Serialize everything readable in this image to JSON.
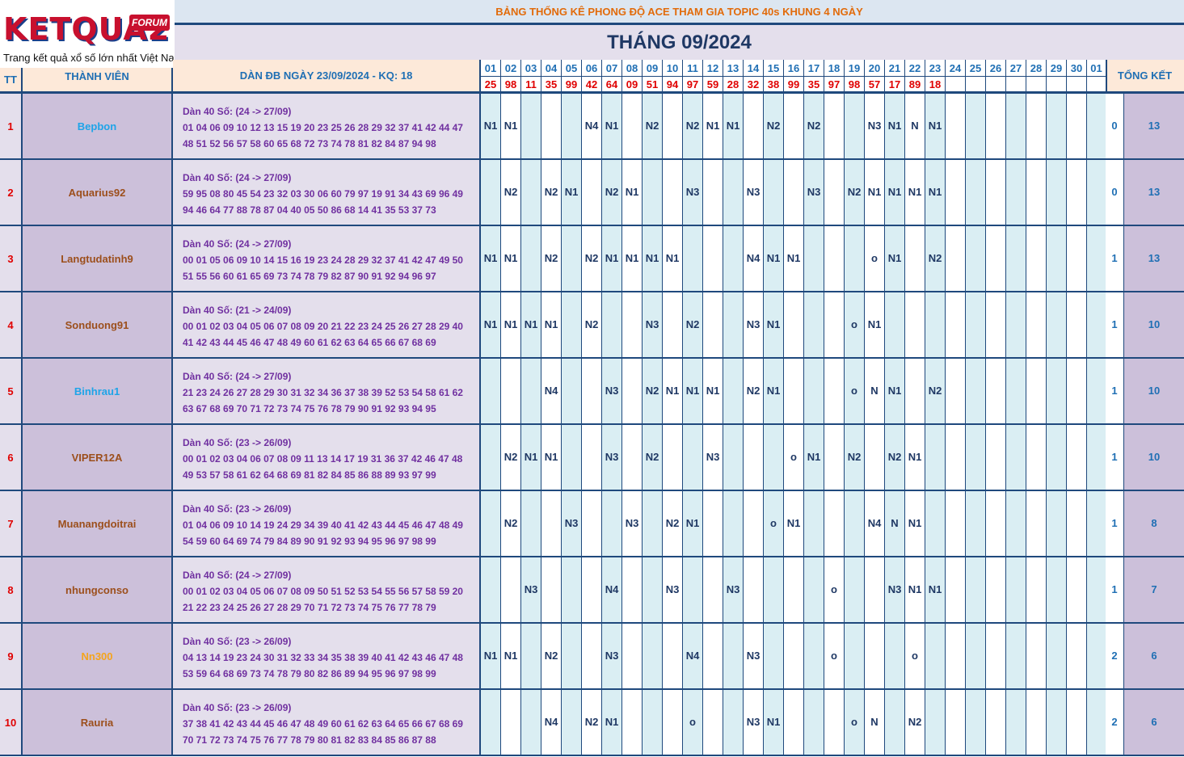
{
  "logo": {
    "brand": "KETQUA2",
    "badge": "FORUM",
    "tagline": "Trang kết quả xổ số lớn nhất Việt Nam"
  },
  "banner": "BẢNG THỐNG KÊ PHONG ĐỘ ACE THAM GIA TOPIC 40s KHUNG 4 NGÀY",
  "month_title": "THÁNG 09/2024",
  "headers": {
    "tt": "TT",
    "member": "THÀNH VIÊN",
    "dan": "DÀN ĐB NGÀY 23/09/2024 - KQ: 18",
    "total": "TỔNG KẾT"
  },
  "days": [
    "01",
    "02",
    "03",
    "04",
    "05",
    "06",
    "07",
    "08",
    "09",
    "10",
    "11",
    "12",
    "13",
    "14",
    "15",
    "16",
    "17",
    "18",
    "19",
    "20",
    "21",
    "22",
    "23",
    "24",
    "25",
    "26",
    "27",
    "28",
    "29",
    "30",
    "01"
  ],
  "results": [
    "25",
    "98",
    "11",
    "35",
    "99",
    "42",
    "64",
    "09",
    "51",
    "94",
    "97",
    "59",
    "28",
    "32",
    "38",
    "99",
    "35",
    "97",
    "98",
    "57",
    "17",
    "89",
    "18",
    "",
    "",
    "",
    "",
    "",
    "",
    "",
    ""
  ],
  "colors": {
    "header_bg": "#fde9d9",
    "name_bg": "#ccc0da",
    "dan_bg": "#e4dfec",
    "col_a": "#daeef3",
    "border": "#1f497d",
    "red": "#e00000",
    "purple": "#7030a0"
  },
  "rows": [
    {
      "tt": "1",
      "name": "Bepbon",
      "name_color": "#1ea4e8",
      "dan_title": "Dàn 40 Số: (24 -> 27/09)",
      "dan_line1": "01 04 06 09 10 12 13 15 19 20 23 25 26 28 29 32 37 41 42 44 47",
      "dan_line2": "48 51 52 56 57 58 60 65 68 72 73 74 78 81 82 84 87 94 98",
      "cells": [
        "N1",
        "N1",
        "",
        "",
        "",
        "N4",
        "N1",
        "",
        "N2",
        "",
        "N2",
        "N1",
        "N1",
        "",
        "N2",
        "",
        "N2",
        "",
        "",
        "N3",
        "N1",
        "N",
        "N1",
        "",
        "",
        "",
        "",
        "",
        "",
        "",
        ""
      ],
      "total_a": "0",
      "total_b": "13"
    },
    {
      "tt": "2",
      "name": "Aquarius92",
      "name_color": "#9c4f1c",
      "dan_title": "Dàn 40 Số: (24 -> 27/09)",
      "dan_line1": "59 95 08 80 45 54 23 32 03 30 06 60 79 97 19 91 34 43 69 96 49",
      "dan_line2": "94 46 64 77 88 78 87 04 40 05 50 86 68 14 41 35 53 37 73",
      "cells": [
        "",
        "N2",
        "",
        "N2",
        "N1",
        "",
        "N2",
        "N1",
        "",
        "",
        "N3",
        "",
        "",
        "N3",
        "",
        "",
        "N3",
        "",
        "N2",
        "N1",
        "N1",
        "N1",
        "N1",
        "",
        "",
        "",
        "",
        "",
        "",
        "",
        ""
      ],
      "total_a": "0",
      "total_b": "13"
    },
    {
      "tt": "3",
      "name": "Langtudatinh9",
      "name_color": "#9c4f1c",
      "dan_title": "Dàn 40 Số: (24 -> 27/09)",
      "dan_line1": "00 01 05 06 09 10 14 15 16 19 23 24 28 29 32 37 41 42 47 49 50",
      "dan_line2": "51 55 56 60 61 65 69 73 74 78 79 82 87 90 91 92 94 96 97",
      "cells": [
        "N1",
        "N1",
        "",
        "N2",
        "",
        "N2",
        "N1",
        "N1",
        "N1",
        "N1",
        "",
        "",
        "",
        "N4",
        "N1",
        "N1",
        "",
        "",
        "",
        "o",
        "N1",
        "",
        "N2",
        "",
        "",
        "",
        "",
        "",
        "",
        "",
        ""
      ],
      "total_a": "1",
      "total_b": "13"
    },
    {
      "tt": "4",
      "name": "Sonduong91",
      "name_color": "#9c4f1c",
      "dan_title": "Dàn 40 Số: (21 -> 24/09)",
      "dan_line1": "00 01 02 03 04 05 06 07 08 09 20 21 22 23 24 25 26 27 28 29 40",
      "dan_line2": "41 42 43 44 45 46 47 48 49 60 61 62 63 64 65 66 67 68 69",
      "cells": [
        "N1",
        "N1",
        "N1",
        "N1",
        "",
        "N2",
        "",
        "",
        "N3",
        "",
        "N2",
        "",
        "",
        "N3",
        "N1",
        "",
        "",
        "",
        "o",
        "N1",
        "",
        "",
        "",
        "",
        "",
        "",
        "",
        "",
        "",
        "",
        ""
      ],
      "total_a": "1",
      "total_b": "10"
    },
    {
      "tt": "5",
      "name": "Binhrau1",
      "name_color": "#1ea4e8",
      "dan_title": "Dàn 40 Số: (24 -> 27/09)",
      "dan_line1": "21 23 24 26 27 28 29 30 31 32 34 36 37 38 39 52 53 54 58 61 62",
      "dan_line2": "63 67 68 69 70 71 72 73 74 75 76 78 79 90 91 92 93 94 95",
      "cells": [
        "",
        "",
        "",
        "N4",
        "",
        "",
        "N3",
        "",
        "N2",
        "N1",
        "N1",
        "N1",
        "",
        "N2",
        "N1",
        "",
        "",
        "",
        "o",
        "N",
        "N1",
        "",
        "N2",
        "",
        "",
        "",
        "",
        "",
        "",
        "",
        ""
      ],
      "total_a": "1",
      "total_b": "10"
    },
    {
      "tt": "6",
      "name": "VIPER12A",
      "name_color": "#9c4f1c",
      "dan_title": "Dàn 40 Số: (23 -> 26/09)",
      "dan_line1": "00 01 02 03 04 06 07 08 09 11 13 14 17 19 31 36 37 42 46 47 48",
      "dan_line2": "49 53 57 58 61 62 64 68 69 81 82 84 85 86 88 89 93 97 99",
      "cells": [
        "",
        "N2",
        "N1",
        "N1",
        "",
        "",
        "N3",
        "",
        "N2",
        "",
        "",
        "N3",
        "",
        "",
        "",
        "o",
        "N1",
        "",
        "N2",
        "",
        "N2",
        "N1",
        "",
        "",
        "",
        "",
        "",
        "",
        "",
        "",
        ""
      ],
      "total_a": "1",
      "total_b": "10"
    },
    {
      "tt": "7",
      "name": "Muanangdoitrai",
      "name_color": "#9c4f1c",
      "dan_title": "Dàn 40 Số: (23 -> 26/09)",
      "dan_line1": "01 04 06 09 10 14 19 24 29 34 39 40 41 42 43 44 45 46 47 48 49",
      "dan_line2": "54 59 60 64 69 74 79 84 89 90 91 92 93 94 95 96 97 98 99",
      "cells": [
        "",
        "N2",
        "",
        "",
        "N3",
        "",
        "",
        "N3",
        "",
        "N2",
        "N1",
        "",
        "",
        "",
        "o",
        "N1",
        "",
        "",
        "",
        "N4",
        "N",
        "N1",
        "",
        "",
        "",
        "",
        "",
        "",
        "",
        "",
        ""
      ],
      "total_a": "1",
      "total_b": "8"
    },
    {
      "tt": "8",
      "name": "nhungconso",
      "name_color": "#9c4f1c",
      "dan_title": "Dàn 40 Số: (24 -> 27/09)",
      "dan_line1": "00 01 02 03 04 05 06 07 08 09 50 51 52 53 54 55 56 57 58 59 20",
      "dan_line2": "21 22 23 24 25 26 27 28 29 70 71 72 73 74 75 76 77 78 79",
      "cells": [
        "",
        "",
        "N3",
        "",
        "",
        "",
        "N4",
        "",
        "",
        "N3",
        "",
        "",
        "N3",
        "",
        "",
        "",
        "",
        "o",
        "",
        "",
        "N3",
        "N1",
        "N1",
        "",
        "",
        "",
        "",
        "",
        "",
        "",
        ""
      ],
      "total_a": "1",
      "total_b": "7"
    },
    {
      "tt": "9",
      "name": "Nn300",
      "name_color": "#f4a41c",
      "dan_title": "Dàn 40 Số: (23 -> 26/09)",
      "dan_line1": "04 13 14 19 23 24 30 31 32 33 34 35 38 39 40 41 42 43 46 47 48",
      "dan_line2": "53 59 64 68 69 73 74 78 79 80 82 86 89 94 95 96 97 98 99",
      "cells": [
        "N1",
        "N1",
        "",
        "N2",
        "",
        "",
        "N3",
        "",
        "",
        "",
        "N4",
        "",
        "",
        "N3",
        "",
        "",
        "",
        "o",
        "",
        "",
        "",
        "o",
        "",
        "",
        "",
        "",
        "",
        "",
        "",
        "",
        ""
      ],
      "total_a": "2",
      "total_b": "6"
    },
    {
      "tt": "10",
      "name": "Rauria",
      "name_color": "#9c4f1c",
      "dan_title": "Dàn 40 Số: (23 -> 26/09)",
      "dan_line1": "37 38 41 42 43 44 45 46 47 48 49 60 61 62 63 64 65 66 67 68 69",
      "dan_line2": "70 71 72 73 74 75 76 77 78 79 80 81 82 83 84 85 86 87 88",
      "cells": [
        "",
        "",
        "",
        "N4",
        "",
        "N2",
        "N1",
        "",
        "",
        "",
        "o",
        "",
        "",
        "N3",
        "N1",
        "",
        "",
        "",
        "o",
        "N",
        "",
        "N2",
        "",
        "",
        "",
        "",
        "",
        "",
        "",
        "",
        ""
      ],
      "total_a": "2",
      "total_b": "6"
    }
  ]
}
